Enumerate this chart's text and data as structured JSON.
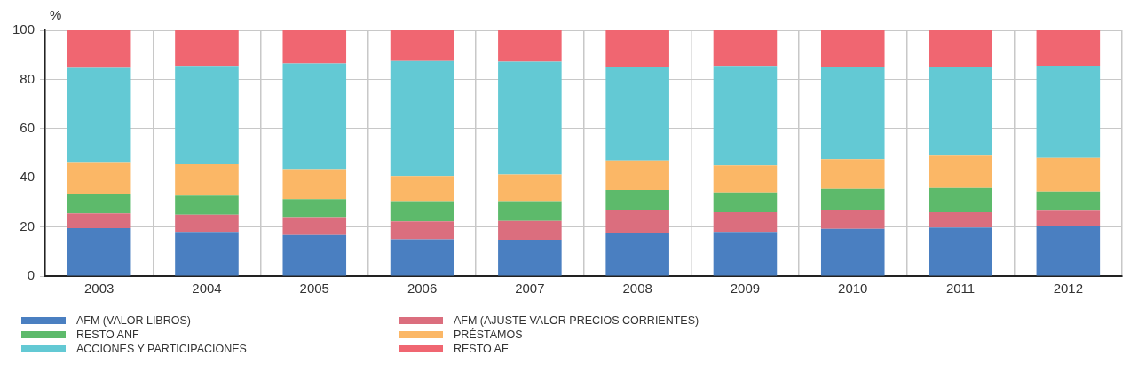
{
  "chart_data": {
    "type": "bar",
    "stacked": true,
    "ylabel": "%",
    "categories": [
      "2003",
      "2004",
      "2005",
      "2006",
      "2007",
      "2008",
      "2009",
      "2010",
      "2011",
      "2012"
    ],
    "series": [
      {
        "name": "AFM (VALOR LIBROS)",
        "color": "#4a7fc1",
        "values": [
          19.5,
          18,
          16.7,
          15,
          14.8,
          17.4,
          18,
          19.2,
          19.8,
          20.3
        ]
      },
      {
        "name": "AFM (AJUSTE VALOR PRECIOS CORRIENTES)",
        "color": "#db6e7e",
        "values": [
          6,
          7,
          7.3,
          7.3,
          7.7,
          9.3,
          8,
          7.5,
          6.2,
          6.3
        ]
      },
      {
        "name": "RESTO ANF",
        "color": "#5dba6b",
        "values": [
          8,
          7.8,
          7.3,
          8.2,
          8,
          8.3,
          8,
          8.8,
          9.8,
          7.8
        ]
      },
      {
        "name": "PRÉSTAMOS",
        "color": "#fbb766",
        "values": [
          12.5,
          12.7,
          12.2,
          10.2,
          10.8,
          12,
          11,
          12.1,
          13.2,
          13.7
        ]
      },
      {
        "name": "ACCIONES Y PARTICIPACIONES",
        "color": "#63c9d4",
        "values": [
          38.7,
          40,
          43,
          46.8,
          45.9,
          38.2,
          40.5,
          37.6,
          35.8,
          37.5
        ]
      },
      {
        "name": "RESTO AF",
        "color": "#f06671",
        "values": [
          15.3,
          14.5,
          13.5,
          12.5,
          12.8,
          14.8,
          14.5,
          14.8,
          15.2,
          14.4
        ]
      }
    ],
    "ylim": [
      0,
      100
    ],
    "yticks": [
      0,
      20,
      40,
      60,
      80,
      100
    ],
    "grid": true,
    "legend": "bottom left"
  }
}
